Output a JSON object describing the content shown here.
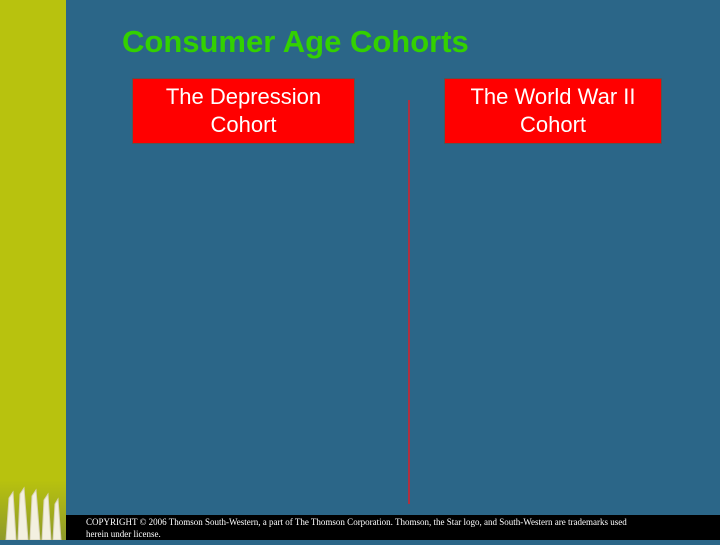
{
  "slide": {
    "title": "Consumer Age Cohorts",
    "cohorts": [
      {
        "label": "The Depression Cohort"
      },
      {
        "label": "The World War II Cohort"
      }
    ],
    "copyright": "COPYRIGHT © 2006 Thomson South-Western, a part of The Thomson Corporation. Thomson, the Star logo, and South-Western are trademarks used herein under license."
  },
  "colors": {
    "background": "#2b6688",
    "left_band": "#b8c20e",
    "title": "#33d100",
    "cohort_box": "#ff0000",
    "divider": "#b03040"
  },
  "icons": {
    "decor": "asparagus-bundle-image"
  }
}
